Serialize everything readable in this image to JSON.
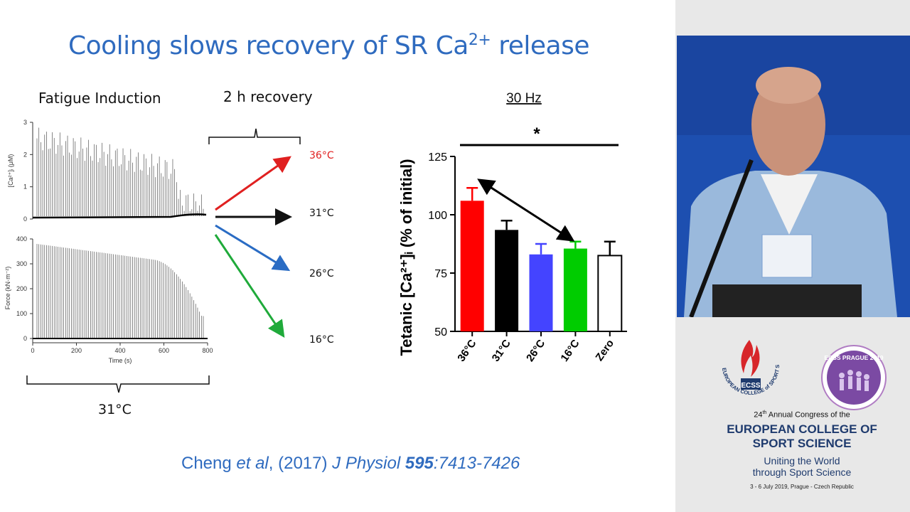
{
  "slide": {
    "title_main": "Cooling slows recovery of SR Ca",
    "title_sup": "2+",
    "title_tail": " release",
    "fatigue_header": "Fatigue Induction",
    "recovery_header": "2 h recovery",
    "fatigue_temp": "31°C",
    "recovery_temps": [
      {
        "label": "36°C",
        "color": "#e02020"
      },
      {
        "label": "31°C",
        "color": "#111111"
      },
      {
        "label": "26°C",
        "color": "#2a6cc4"
      },
      {
        "label": "16°C",
        "color": "#1faa3a"
      }
    ],
    "citation": {
      "a": "Cheng ",
      "b": "et al",
      "c": ", (2017) ",
      "d": "J Physiol ",
      "e": "595",
      "f": ":7413-7426"
    }
  },
  "traces": {
    "ca_ylabel": "[Ca²⁺]ᵢ (μM)",
    "ca_ticks": [
      "0",
      "1",
      "2",
      "3"
    ],
    "force_ylabel": "Force (kN·m⁻²)",
    "force_ticks": [
      "0",
      "100",
      "200",
      "300",
      "400"
    ],
    "x_ticks": [
      "0",
      "200",
      "400",
      "600",
      "800"
    ],
    "xlabel": "Time (s)"
  },
  "chart_data": {
    "type": "bar",
    "title": "30 Hz",
    "ylabel": "Tetanic [Ca²⁺]ᵢ (% of initial)",
    "ylim": [
      50,
      125
    ],
    "yticks": [
      50,
      75,
      100,
      125
    ],
    "categories": [
      "36°C",
      "31°C",
      "26°C",
      "16°C",
      "Zero"
    ],
    "values": [
      106,
      93.5,
      83,
      85.5,
      82.5
    ],
    "errors": [
      5.5,
      4,
      4.5,
      3,
      6
    ],
    "colors": [
      "#ff0000",
      "#000000",
      "#4444ff",
      "#00cc00",
      "#ffffff"
    ],
    "significance": "*"
  },
  "congress": {
    "ecss_logo": "ECSS",
    "ecss_ring": "EUROPEAN COLLEGE of SPORT SCIENCE",
    "prague_logo": "ECSS PRAGUE 2019",
    "annual_num": "24",
    "annual_sup": "th",
    "annual_text": " Annual Congress of the",
    "line1": "EUROPEAN COLLEGE OF",
    "line2": "SPORT SCIENCE",
    "motto1": "Uniting the World",
    "motto2": "through Sport Science",
    "dates": "3 - 6 July 2019, Prague - Czech Republic"
  }
}
